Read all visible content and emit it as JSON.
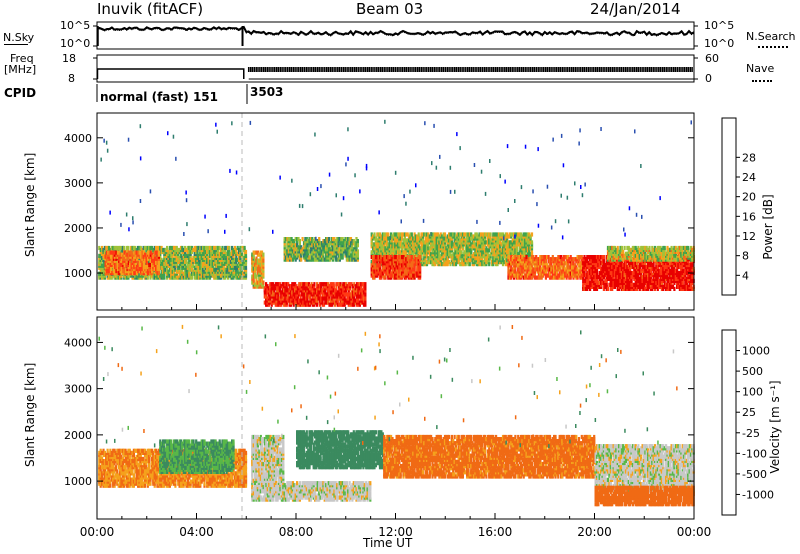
{
  "header": {
    "station": "Inuvik (fitACF)",
    "beam": "Beam 03",
    "date": "24/Jan/2014"
  },
  "top_panels": {
    "nsky_label": "N.Sky",
    "nsky_ticks": [
      "10^5",
      "10^0"
    ],
    "nsearch_label": "N.Search",
    "nsearch_ticks": [
      "10^5",
      "10^0"
    ],
    "freq_label_line1": "Freq",
    "freq_label_line2": "[MHz]",
    "freq_ticks": [
      "18",
      "8"
    ],
    "nave_label": "Nave",
    "nave_ticks": [
      "60",
      "0"
    ],
    "cpid_label": "CPID",
    "cpid_segments": [
      {
        "label": "normal (fast) 151",
        "start_hour": 0.0,
        "end_hour": 6.0
      },
      {
        "label": "3503",
        "start_hour": 6.0,
        "end_hour": 24.0
      }
    ]
  },
  "chart_data": [
    {
      "type": "heatmap",
      "panel": "power",
      "ylabel": "Slant Range [km]",
      "yticks": [
        1000,
        2000,
        3000,
        4000
      ],
      "ylim": [
        180,
        4550
      ],
      "xlim": [
        0,
        24
      ],
      "colorbar_label": "Power [dB]",
      "colorbar_ticks": [
        "4",
        "8",
        "12",
        "16",
        "20",
        "24",
        "28"
      ],
      "colorbar_colors": [
        "#0000ff",
        "#2a4fb0",
        "#2e7d6e",
        "#3fa24d",
        "#a0c23a",
        "#f5a21c",
        "#f46a18",
        "#ff3a14",
        "#e80000"
      ],
      "range": [
        0,
        30
      ],
      "regions": [
        {
          "t0": 0.05,
          "t1": 6.0,
          "r0": 900,
          "r1": 1600,
          "v": 14
        },
        {
          "t0": 0.3,
          "t1": 2.5,
          "r0": 1000,
          "r1": 1500,
          "v": 22
        },
        {
          "t0": 6.2,
          "t1": 6.7,
          "r0": 700,
          "r1": 1500,
          "v": 18
        },
        {
          "t0": 6.7,
          "t1": 10.8,
          "r0": 300,
          "r1": 800,
          "v": 27
        },
        {
          "t0": 7.5,
          "t1": 10.5,
          "r0": 1300,
          "r1": 1800,
          "v": 13
        },
        {
          "t0": 11.0,
          "t1": 17.5,
          "r0": 1200,
          "r1": 1900,
          "v": 15
        },
        {
          "t0": 11.0,
          "t1": 13.0,
          "r0": 900,
          "r1": 1400,
          "v": 25
        },
        {
          "t0": 16.5,
          "t1": 19.5,
          "r0": 900,
          "r1": 1400,
          "v": 22
        },
        {
          "t0": 19.5,
          "t1": 24.0,
          "r0": 650,
          "r1": 1400,
          "v": 28
        },
        {
          "t0": 20.5,
          "t1": 24.0,
          "r0": 1300,
          "r1": 1600,
          "v": 16
        }
      ]
    },
    {
      "type": "heatmap",
      "panel": "velocity",
      "ylabel": "Slant Range [km]",
      "yticks": [
        1000,
        2000,
        3000,
        4000
      ],
      "ylim": [
        180,
        4550
      ],
      "xlim": [
        0,
        24
      ],
      "colorbar_label": "Velocity [m s⁻¹]",
      "colorbar_ticks": [
        "1000",
        "500",
        "100",
        "25",
        "-25",
        "-100",
        "-500",
        "-1000"
      ],
      "colorbar_colors": [
        "#1c3fc0",
        "#2e6fae",
        "#3b8a5f",
        "#59b848",
        "#c8c8c8",
        "#f5a21c",
        "#f06a14",
        "#ee3a10",
        "#e30000"
      ],
      "regions": [
        {
          "t0": 0.05,
          "t1": 6.0,
          "r0": 900,
          "r1": 1700,
          "v": -100
        },
        {
          "t0": 2.5,
          "t1": 5.5,
          "r0": 1200,
          "r1": 1900,
          "v": 100
        },
        {
          "t0": 6.2,
          "t1": 7.5,
          "r0": 600,
          "r1": 2000,
          "v": 0
        },
        {
          "t0": 7.5,
          "t1": 11.0,
          "r0": 600,
          "r1": 1000,
          "v": 0
        },
        {
          "t0": 8.0,
          "t1": 11.5,
          "r0": 1300,
          "r1": 2100,
          "v": 300
        },
        {
          "t0": 11.5,
          "t1": 20.0,
          "r0": 1100,
          "r1": 2000,
          "v": -150
        },
        {
          "t0": 20.0,
          "t1": 24.0,
          "r0": 800,
          "r1": 1800,
          "v": 0
        },
        {
          "t0": 20.0,
          "t1": 24.0,
          "r0": 500,
          "r1": 900,
          "v": -200
        }
      ]
    }
  ],
  "x_axis": {
    "label": "Time UT",
    "ticks": [
      "00:00",
      "04:00",
      "08:00",
      "12:00",
      "16:00",
      "20:00",
      "00:00"
    ]
  }
}
